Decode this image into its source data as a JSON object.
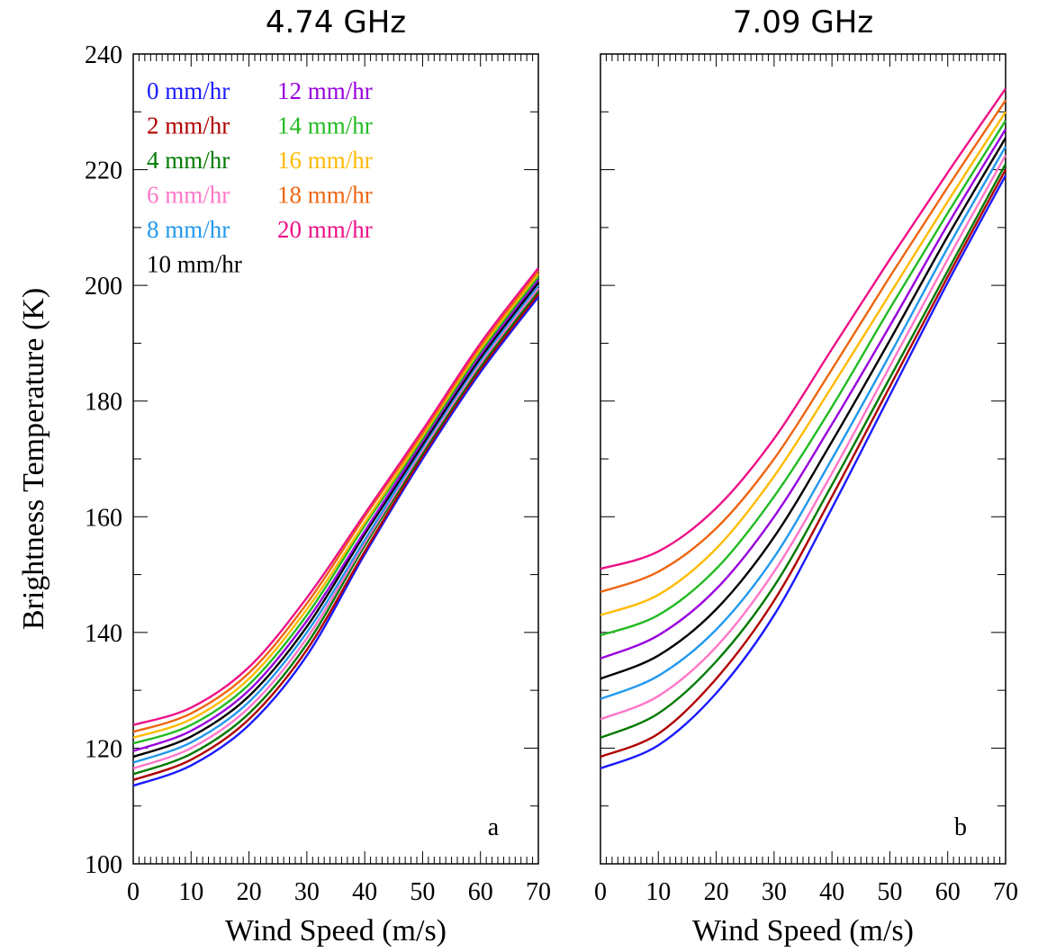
{
  "chart_data": [
    {
      "type": "line",
      "title": "4.74 GHz",
      "xlabel": "Wind Speed (m/s)",
      "ylabel": "Brightness Temperature (K)",
      "xlim": [
        0,
        70
      ],
      "ylim": [
        100,
        240
      ],
      "xticks": [
        "0",
        "10",
        "20",
        "30",
        "40",
        "50",
        "60",
        "70"
      ],
      "yticks": [
        "100",
        "120",
        "140",
        "160",
        "180",
        "200",
        "220",
        "240"
      ],
      "panel_label": "a",
      "legend_position": "top-left",
      "x": [
        0,
        10,
        20,
        30,
        40,
        50,
        60,
        70
      ],
      "series": [
        {
          "name": "0 mm/hr",
          "color": "#1a1aff",
          "values": [
            113.5,
            117.0,
            124.0,
            136.0,
            153.5,
            170.0,
            185.0,
            198.0
          ]
        },
        {
          "name": "2 mm/hr",
          "color": "#b00000",
          "values": [
            114.5,
            118.0,
            125.0,
            137.0,
            154.0,
            170.5,
            185.5,
            198.5
          ]
        },
        {
          "name": "4 mm/hr",
          "color": "#007a00",
          "values": [
            115.5,
            119.0,
            126.0,
            138.0,
            155.0,
            171.0,
            186.0,
            199.0
          ]
        },
        {
          "name": "6 mm/hr",
          "color": "#ff77c8",
          "values": [
            116.5,
            120.0,
            127.0,
            139.0,
            155.5,
            171.5,
            186.5,
            199.5
          ]
        },
        {
          "name": "8 mm/hr",
          "color": "#2299ee",
          "values": [
            117.5,
            121.0,
            128.0,
            140.0,
            156.0,
            172.0,
            187.0,
            200.0
          ]
        },
        {
          "name": "10 mm/hr",
          "color": "#000000",
          "values": [
            118.5,
            122.0,
            129.0,
            141.0,
            157.0,
            172.5,
            187.5,
            200.5
          ]
        },
        {
          "name": "12 mm/hr",
          "color": "#9900dd",
          "values": [
            119.5,
            123.0,
            130.0,
            142.0,
            157.5,
            173.0,
            188.0,
            201.0
          ]
        },
        {
          "name": "14 mm/hr",
          "color": "#22bb22",
          "values": [
            120.8,
            124.0,
            131.0,
            143.0,
            158.5,
            173.5,
            188.5,
            201.5
          ]
        },
        {
          "name": "16 mm/hr",
          "color": "#ffbb00",
          "values": [
            121.8,
            125.0,
            132.0,
            144.0,
            159.0,
            174.0,
            189.0,
            202.0
          ]
        },
        {
          "name": "18 mm/hr",
          "color": "#ee6611",
          "values": [
            122.8,
            126.0,
            133.0,
            145.0,
            160.0,
            174.5,
            189.5,
            202.5
          ]
        },
        {
          "name": "20 mm/hr",
          "color": "#ee1188",
          "values": [
            124.0,
            127.0,
            134.0,
            146.0,
            160.5,
            175.0,
            190.0,
            203.0
          ]
        }
      ]
    },
    {
      "type": "line",
      "title": "7.09 GHz",
      "xlabel": "Wind Speed (m/s)",
      "ylabel": "",
      "xlim": [
        0,
        70
      ],
      "ylim": [
        100,
        240
      ],
      "xticks": [
        "0",
        "10",
        "20",
        "30",
        "40",
        "50",
        "60",
        "70"
      ],
      "yticks": [],
      "panel_label": "b",
      "x": [
        0,
        10,
        20,
        30,
        40,
        50,
        60,
        70
      ],
      "series": [
        {
          "name": "0 mm/hr",
          "color": "#1a1aff",
          "values": [
            116.5,
            120.5,
            129.5,
            143.0,
            161.5,
            181.0,
            200.5,
            219.0
          ]
        },
        {
          "name": "2 mm/hr",
          "color": "#b00000",
          "values": [
            118.5,
            122.5,
            132.0,
            145.5,
            163.5,
            182.5,
            201.5,
            220.0
          ]
        },
        {
          "name": "4 mm/hr",
          "color": "#007a00",
          "values": [
            121.8,
            126.0,
            135.0,
            148.0,
            165.5,
            184.0,
            202.5,
            221.0
          ]
        },
        {
          "name": "6 mm/hr",
          "color": "#ff77c8",
          "values": [
            125.0,
            129.0,
            137.5,
            150.5,
            167.5,
            186.0,
            204.5,
            222.5
          ]
        },
        {
          "name": "8 mm/hr",
          "color": "#2299ee",
          "values": [
            128.5,
            132.5,
            140.5,
            153.0,
            170.0,
            188.0,
            206.5,
            224.0
          ]
        },
        {
          "name": "10 mm/hr",
          "color": "#000000",
          "values": [
            132.0,
            136.0,
            144.0,
            156.5,
            173.0,
            190.5,
            208.5,
            225.5
          ]
        },
        {
          "name": "12 mm/hr",
          "color": "#9900dd",
          "values": [
            135.5,
            139.5,
            147.5,
            160.0,
            176.0,
            193.0,
            210.5,
            227.0
          ]
        },
        {
          "name": "14 mm/hr",
          "color": "#22bb22",
          "values": [
            139.5,
            143.0,
            151.0,
            163.5,
            179.0,
            196.0,
            212.5,
            228.5
          ]
        },
        {
          "name": "16 mm/hr",
          "color": "#ffbb00",
          "values": [
            143.0,
            146.5,
            154.5,
            167.0,
            182.5,
            198.5,
            214.5,
            230.0
          ]
        },
        {
          "name": "18 mm/hr",
          "color": "#ee6611",
          "values": [
            147.0,
            150.5,
            158.0,
            170.0,
            185.5,
            201.5,
            217.0,
            232.0
          ]
        },
        {
          "name": "20 mm/hr",
          "color": "#ee1188",
          "values": [
            151.0,
            154.0,
            161.5,
            173.5,
            189.0,
            204.5,
            219.5,
            234.0
          ]
        }
      ]
    }
  ]
}
